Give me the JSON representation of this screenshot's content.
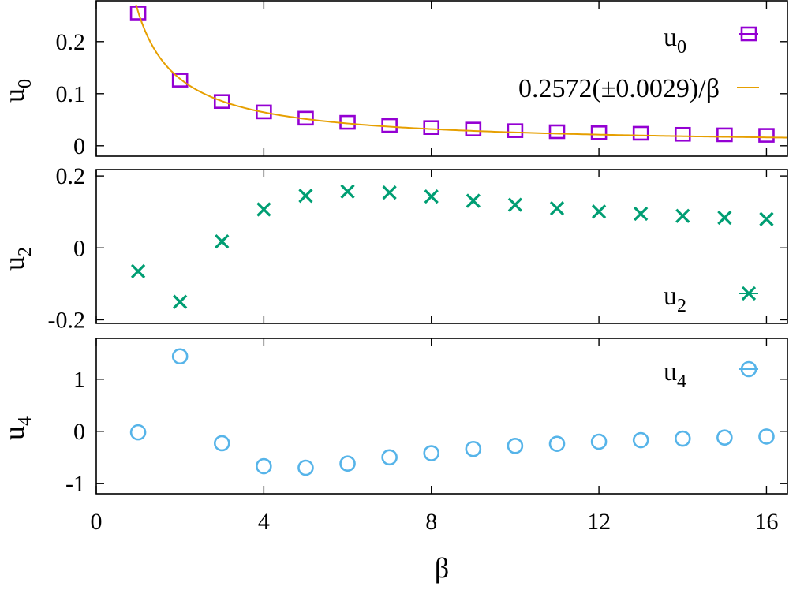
{
  "chart_data": [
    {
      "type": "scatter",
      "panel": "top",
      "ylabel": "u",
      "ylabel_sub": "0",
      "ylim": [
        -0.02,
        0.28
      ],
      "yticks": [
        {
          "value": 0,
          "label": "0"
        },
        {
          "value": 0.1,
          "label": "0.1"
        },
        {
          "value": 0.2,
          "label": "0.2"
        }
      ],
      "xlim": [
        0,
        16.5
      ],
      "legend_position": "top-right",
      "series": [
        {
          "name": "u",
          "name_sub": "0",
          "marker": "square",
          "color": "#9400d3",
          "x": [
            1,
            2,
            3,
            4,
            5,
            6,
            7,
            8,
            9,
            10,
            11,
            12,
            13,
            14,
            15,
            16
          ],
          "y": [
            0.255,
            0.126,
            0.085,
            0.065,
            0.053,
            0.045,
            0.039,
            0.035,
            0.032,
            0.029,
            0.027,
            0.025,
            0.024,
            0.022,
            0.021,
            0.02
          ]
        },
        {
          "name": "0.2572(±0.0029)/β",
          "type": "line",
          "color": "#e69f00",
          "coefficient": 0.2572,
          "x_start": 0.95,
          "x_end": 16.5
        }
      ]
    },
    {
      "type": "scatter",
      "panel": "middle",
      "ylabel": "u",
      "ylabel_sub": "2",
      "ylim": [
        -0.21,
        0.22
      ],
      "yticks": [
        {
          "value": -0.2,
          "label": "-0.2"
        },
        {
          "value": 0,
          "label": "0"
        },
        {
          "value": 0.2,
          "label": "0.2"
        }
      ],
      "xlim": [
        0,
        16.5
      ],
      "legend_position": "bottom-right",
      "series": [
        {
          "name": "u",
          "name_sub": "2",
          "marker": "x",
          "color": "#009e73",
          "x": [
            1,
            2,
            3,
            4,
            5,
            6,
            7,
            8,
            9,
            10,
            11,
            12,
            13,
            14,
            15,
            16
          ],
          "y": [
            -0.065,
            -0.15,
            0.018,
            0.107,
            0.145,
            0.157,
            0.154,
            0.143,
            0.131,
            0.12,
            0.11,
            0.101,
            0.095,
            0.089,
            0.084,
            0.08
          ]
        }
      ]
    },
    {
      "type": "scatter",
      "panel": "bottom",
      "ylabel": "u",
      "ylabel_sub": "4",
      "xlabel": "β",
      "ylim": [
        -1.2,
        1.8
      ],
      "yticks": [
        {
          "value": -1,
          "label": "-1"
        },
        {
          "value": 0,
          "label": "0"
        },
        {
          "value": 1,
          "label": "1"
        }
      ],
      "xlim": [
        0,
        16.5
      ],
      "xticks": [
        {
          "value": 0,
          "label": "0"
        },
        {
          "value": 4,
          "label": "4"
        },
        {
          "value": 8,
          "label": "8"
        },
        {
          "value": 12,
          "label": "12"
        },
        {
          "value": 16,
          "label": "16"
        }
      ],
      "legend_position": "top-right",
      "series": [
        {
          "name": "u",
          "name_sub": "4",
          "marker": "circle",
          "color": "#56b4e9",
          "x": [
            1,
            2,
            3,
            4,
            5,
            6,
            7,
            8,
            9,
            10,
            11,
            12,
            13,
            14,
            15,
            16
          ],
          "y": [
            -0.02,
            1.44,
            -0.23,
            -0.67,
            -0.7,
            -0.62,
            -0.5,
            -0.42,
            -0.34,
            -0.28,
            -0.24,
            -0.2,
            -0.17,
            -0.14,
            -0.12,
            -0.1
          ]
        }
      ]
    }
  ]
}
